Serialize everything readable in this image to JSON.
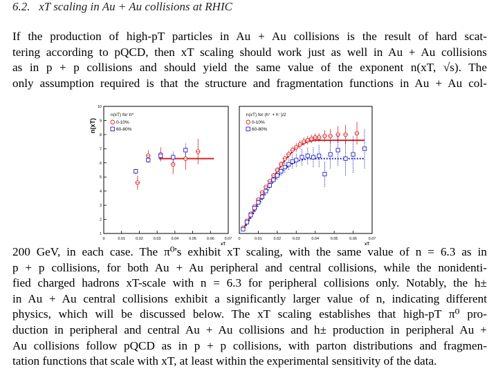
{
  "section": {
    "number": "6.2.",
    "title": "xT scaling in Au + Au collisions at RHIC"
  },
  "paragraph_top": [
    "If the production of high-pT particles in Au + Au collisions is the result of hard scat-",
    "tering according to pQCD, then xT scaling should work just as well in Au + Au collisions",
    "as in p + p collisions and should yield the same value of the exponent n(xT, √s). The",
    "only assumption required is that the structure and fragmentation functions in Au + Au col-"
  ],
  "paragraph_bottom": [
    "200 GeV, in each case. The π⁰'s exhibit xT scaling, with the same value of n = 6.3 as in",
    "p + p collisions, for both Au + Au peripheral and central collisions, while the nonidenti-",
    "fied charged hadrons xT-scale with n = 6.3 for peripheral collisions only. Notably, the h±",
    "in Au + Au central collisions exhibit a significantly larger value of n, indicating different",
    "physics, which will be discussed below. The xT scaling establishes that high-pT π⁰ pro-",
    "duction in peripheral and central Au + Au collisions and h± production in peripheral Au +",
    "Au collisions follow pQCD as in p + p collisions, with parton distributions and fragmen-",
    "tation functions that scale with xT, at least within the experimental sensitivity of the data."
  ],
  "chart_data": [
    {
      "type": "scatter",
      "ylabel": "n(xT)",
      "xlabel": "xT",
      "xlim": [
        0,
        0.07
      ],
      "ylim": [
        1,
        10
      ],
      "xticks": [
        "0",
        "0.01",
        "0.02",
        "0.03",
        "0.04",
        "0.05",
        "0.06",
        "0.07"
      ],
      "yticks": [
        "1",
        "2",
        "3",
        "4",
        "5",
        "6",
        "7",
        "8",
        "9",
        "10"
      ],
      "legend_title": "n(xT) for π⁰",
      "legend_position": "top-left",
      "series": [
        {
          "name": "0-10%",
          "marker": "circle-cross",
          "color": "#d62020",
          "x": [
            0.019,
            0.025,
            0.032,
            0.039,
            0.046,
            0.053
          ],
          "y": [
            4.6,
            6.5,
            6.6,
            5.9,
            6.3,
            6.8
          ],
          "err": [
            0.5,
            0.4,
            0.5,
            0.7,
            0.8,
            0.9
          ]
        },
        {
          "name": "60-80%",
          "marker": "square",
          "color": "#2020c0",
          "x": [
            0.018,
            0.025,
            0.032,
            0.039,
            0.046
          ],
          "y": [
            5.4,
            6.2,
            6.5,
            6.4,
            6.9
          ],
          "err": [
            0.2,
            0.2,
            0.3,
            0.4,
            0.5
          ]
        }
      ],
      "fit": {
        "y": 6.3,
        "x_from": 0.031,
        "x_to": 0.062,
        "color": "#d62020"
      }
    },
    {
      "type": "scatter",
      "xlabel": "xT",
      "xlim": [
        0,
        0.07
      ],
      "ylim": [
        1,
        10
      ],
      "xticks": [
        "0",
        "0.01",
        "0.02",
        "0.03",
        "0.04",
        "0.05",
        "0.06",
        "0.07"
      ],
      "legend_title": "n(xT) for (h⁺ + h⁻)/2",
      "legend_position": "top-left",
      "series": [
        {
          "name": "0-10%",
          "marker": "circle-cross",
          "color": "#d62020",
          "x": [
            0.002,
            0.004,
            0.006,
            0.008,
            0.01,
            0.012,
            0.014,
            0.016,
            0.018,
            0.02,
            0.022,
            0.024,
            0.026,
            0.028,
            0.03,
            0.032,
            0.034,
            0.036,
            0.038,
            0.04,
            0.042,
            0.045,
            0.048,
            0.052,
            0.056,
            0.062
          ],
          "y": [
            1.4,
            1.9,
            2.4,
            2.9,
            3.4,
            3.9,
            4.3,
            4.7,
            5.1,
            5.5,
            5.9,
            6.3,
            6.6,
            6.9,
            7.1,
            7.3,
            7.5,
            7.6,
            7.7,
            7.8,
            7.8,
            7.9,
            7.9,
            8.0,
            8.0,
            8.1
          ],
          "err": [
            0.1,
            0.1,
            0.1,
            0.1,
            0.1,
            0.15,
            0.15,
            0.15,
            0.2,
            0.2,
            0.2,
            0.2,
            0.25,
            0.25,
            0.3,
            0.3,
            0.3,
            0.3,
            0.3,
            0.3,
            0.3,
            0.4,
            0.5,
            0.6,
            0.7,
            0.8
          ]
        },
        {
          "name": "60-80%",
          "marker": "square",
          "color": "#2020c0",
          "x": [
            0.002,
            0.004,
            0.006,
            0.008,
            0.01,
            0.012,
            0.014,
            0.016,
            0.018,
            0.02,
            0.022,
            0.024,
            0.026,
            0.028,
            0.03,
            0.033,
            0.036,
            0.039,
            0.042,
            0.045,
            0.048,
            0.052,
            0.056,
            0.06,
            0.066
          ],
          "y": [
            1.3,
            1.8,
            2.3,
            2.8,
            3.2,
            3.6,
            4.0,
            4.4,
            4.8,
            5.1,
            5.4,
            5.7,
            5.9,
            6.1,
            6.2,
            6.4,
            6.5,
            6.4,
            6.5,
            5.2,
            6.6,
            6.9,
            6.3,
            6.6,
            7.0
          ],
          "err": [
            0.1,
            0.1,
            0.1,
            0.1,
            0.15,
            0.15,
            0.15,
            0.2,
            0.2,
            0.3,
            0.3,
            0.4,
            0.4,
            0.5,
            0.5,
            0.6,
            0.6,
            0.7,
            0.8,
            0.9,
            1.0,
            1.1,
            1.2,
            1.3,
            1.4
          ]
        }
      ],
      "curves": [
        {
          "color": "#d62020",
          "dash": false,
          "x": [
            0.002,
            0.01,
            0.018,
            0.024,
            0.03,
            0.036,
            0.04,
            0.066
          ],
          "y": [
            1.3,
            3.2,
            5.0,
            6.2,
            7.1,
            7.5,
            7.6,
            7.6
          ]
        },
        {
          "color": "#2020c0",
          "dash": true,
          "x": [
            0.002,
            0.01,
            0.018,
            0.024,
            0.03,
            0.036,
            0.04,
            0.066
          ],
          "y": [
            1.2,
            3.0,
            4.7,
            5.6,
            6.1,
            6.3,
            6.3,
            6.3
          ]
        }
      ]
    }
  ]
}
